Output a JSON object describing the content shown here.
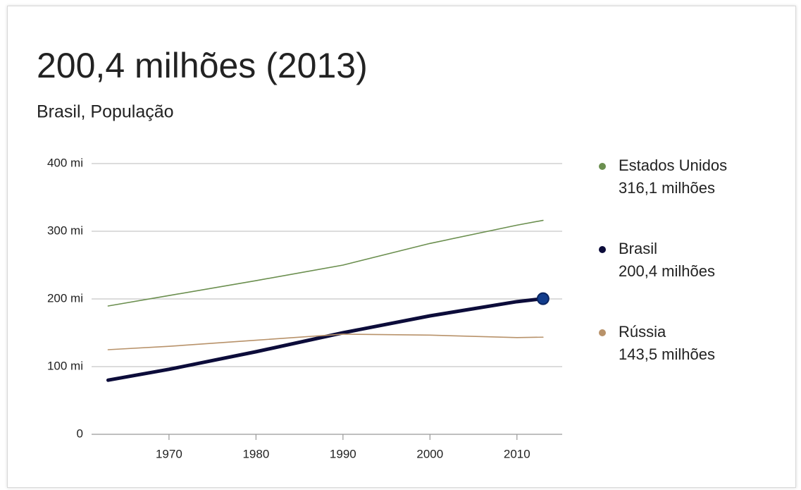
{
  "chart_data": {
    "type": "line",
    "title": "200,4 milhões (2013)",
    "subtitle": "Brasil, População",
    "x": [
      1963,
      1970,
      1980,
      1990,
      2000,
      2010,
      2013
    ],
    "series": [
      {
        "name": "Estados Unidos",
        "color": "#6b8f4f",
        "legend_value": "316,1 milhões",
        "values": [
          189.6,
          205,
          227,
          250,
          282,
          309,
          316.1
        ]
      },
      {
        "name": "Brasil",
        "color": "#0c0c3a",
        "legend_value": "200,4 milhões",
        "values": [
          80,
          96,
          122,
          150,
          175,
          196,
          200.4
        ]
      },
      {
        "name": "Rússia",
        "color": "#b8926a",
        "legend_value": "143,5 milhões",
        "values": [
          125,
          130,
          139,
          148,
          146.5,
          142.9,
          143.5
        ]
      }
    ],
    "xlim": [
      1961.1,
      2015.2
    ],
    "xticks": [
      1970,
      1980,
      1990,
      2000,
      2010
    ],
    "ylim": [
      0,
      400
    ],
    "yticks": [
      0,
      {
        "value": 100,
        "label": "100 mi"
      },
      {
        "value": 200,
        "label": "200 mi"
      },
      {
        "value": 300,
        "label": "300 mi"
      },
      {
        "value": 400,
        "label": "400 mi"
      }
    ],
    "grid": true,
    "legend": "right"
  }
}
